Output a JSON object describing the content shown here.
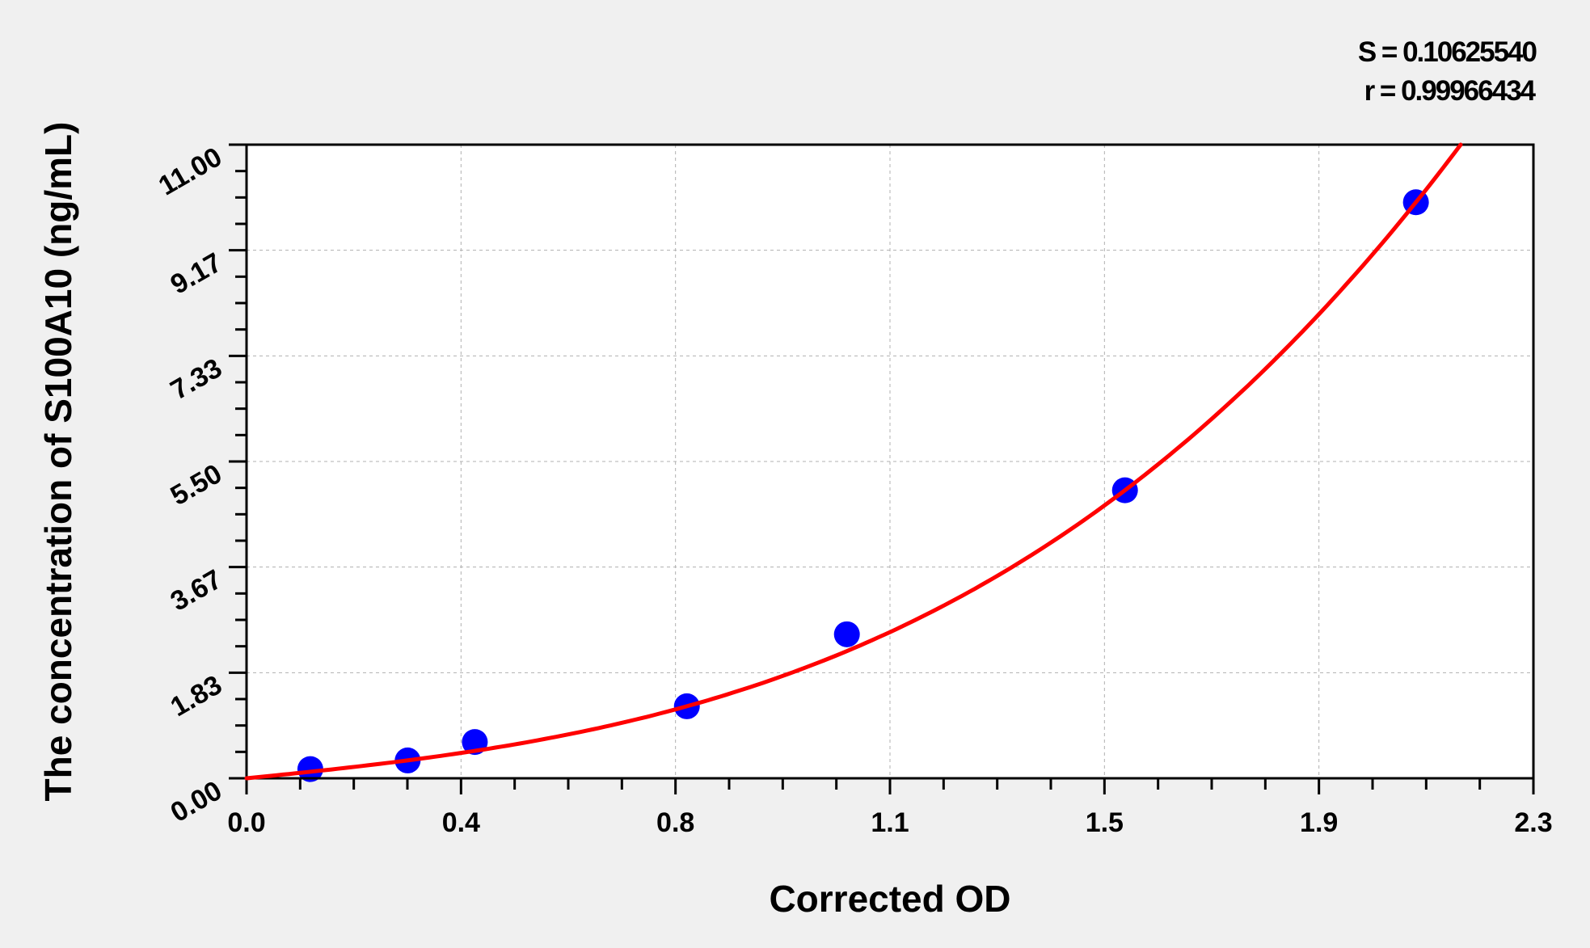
{
  "chart_data": {
    "type": "scatter",
    "title": "",
    "xlabel": "Corrected OD",
    "ylabel": "The concentration of S100A10 (ng/mL)",
    "xlim": [
      0,
      2.3
    ],
    "ylim": [
      0,
      11
    ],
    "x_ticks": [
      "0.0",
      "0.4",
      "0.8",
      "1.1",
      "1.5",
      "1.9",
      "2.3"
    ],
    "y_ticks": [
      "0.00",
      "1.83",
      "3.67",
      "5.50",
      "7.33",
      "9.17",
      "11.00"
    ],
    "grid": true,
    "points": {
      "x": [
        0.114,
        0.288,
        0.408,
        0.787,
        1.073,
        1.57,
        2.09
      ],
      "y": [
        0.16,
        0.31,
        0.63,
        1.25,
        2.5,
        5,
        10
      ]
    },
    "fit_curve": {
      "x_range": [
        0,
        2.17
      ]
    },
    "annotations": {
      "s_value": "S = 0.10625540",
      "r_value": "r = 0.99966434"
    },
    "colors": {
      "points": "#0000ff",
      "curve": "#ff0000",
      "background": "#f0f0f0",
      "plot_bg": "#ffffff",
      "grid": "#b0b0b0"
    }
  }
}
